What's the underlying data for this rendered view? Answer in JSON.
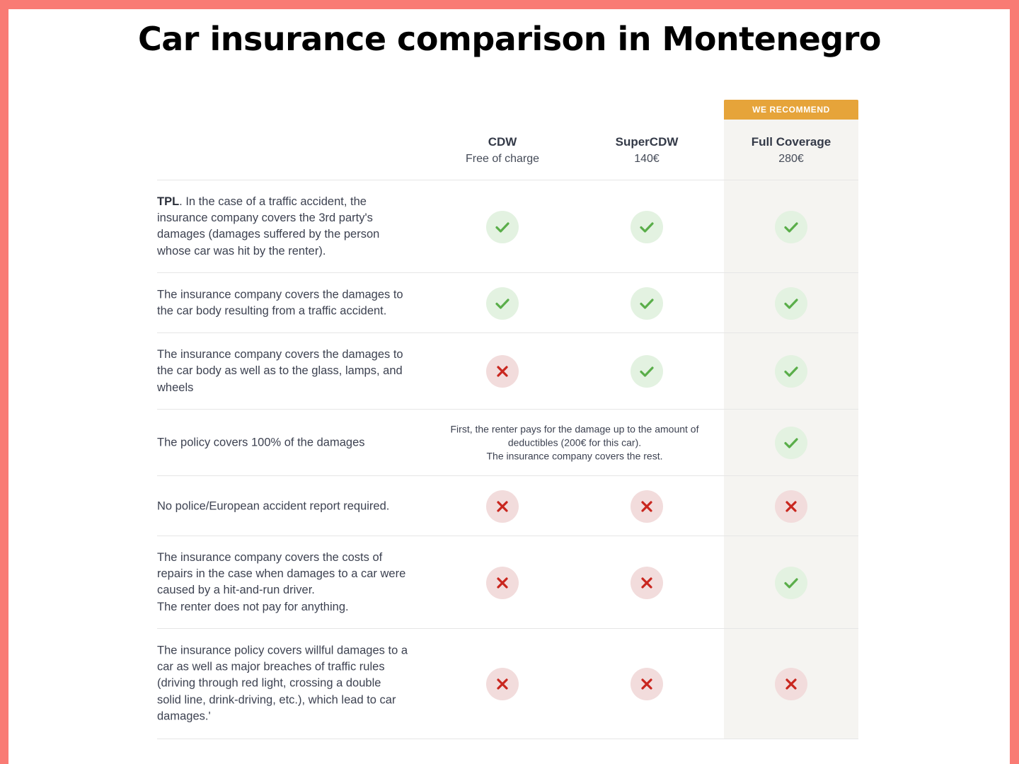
{
  "page": {
    "title": "Car insurance comparison in Montenegro",
    "background_color": "#f97b74",
    "accent_color": "#e6a43a"
  },
  "comparison": {
    "recommend_badge": "WE RECOMMEND",
    "plans": [
      {
        "name": "CDW",
        "price": "Free of charge"
      },
      {
        "name": "SuperCDW",
        "price": "140€"
      },
      {
        "name": "Full Coverage",
        "price": "280€",
        "recommended": true
      }
    ],
    "rows": [
      {
        "lead": "TPL",
        "text": ". In the case of a traffic accident, the\ninsurance company covers the 3rd party's\ndamages (damages suffered by the person\nwhose car was hit by the renter).",
        "cells": [
          "check-icon",
          "check-icon",
          "check-icon"
        ]
      },
      {
        "text": "The insurance company covers the damages to\nthe car body resulting from a traffic accident.",
        "cells": [
          "check-icon",
          "check-icon",
          "check-icon"
        ]
      },
      {
        "text": "The insurance company covers the damages to\nthe car body as well as to the glass, lamps, and\nwheels",
        "cells": [
          "cross-icon",
          "check-icon",
          "check-icon"
        ]
      },
      {
        "text": "The policy covers 100% of the damages",
        "note": "First, the renter pays for the damage up to the amount of\ndeductibles (200€ for this car).\nThe insurance company covers the rest.",
        "cells": [
          "check-icon"
        ]
      },
      {
        "text": "No police/European accident report required.",
        "cells": [
          "cross-icon",
          "cross-icon",
          "cross-icon"
        ]
      },
      {
        "text": "The insurance company covers the costs of\nrepairs in the case when damages to a car were\ncaused by a hit-and-run driver.\nThe renter does not pay for anything.",
        "cells": [
          "cross-icon",
          "cross-icon",
          "check-icon"
        ]
      },
      {
        "text": "The insurance policy covers willful damages to a\ncar as well as major breaches of traffic rules\n(driving through red light, crossing a double\nsolid line, drink-driving, etc.), which lead to car\ndamages.'",
        "cells": [
          "cross-icon",
          "cross-icon",
          "cross-icon"
        ]
      }
    ]
  }
}
